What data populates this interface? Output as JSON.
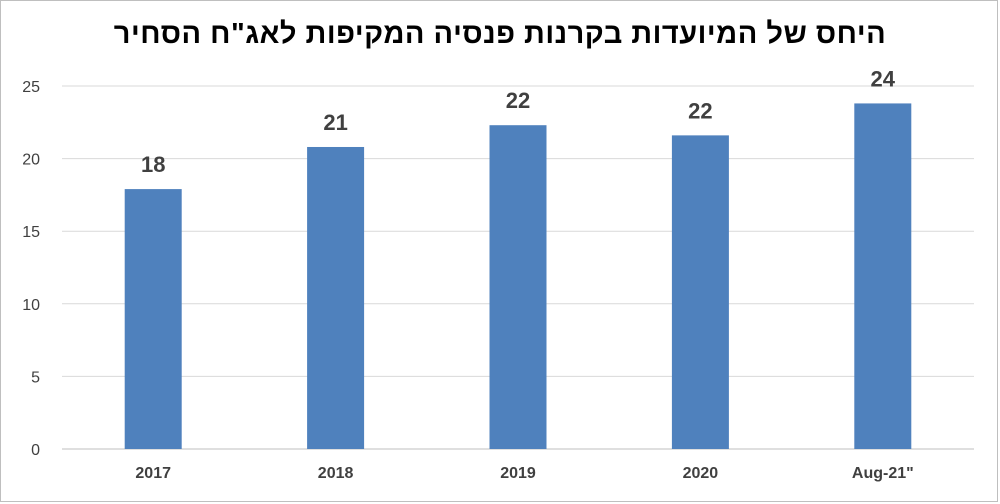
{
  "chart_data": {
    "type": "bar",
    "title": "היחס של המיועדות בקרנות פנסיה המקיפות לאג\"ח הסחיר",
    "xlabel": "",
    "ylabel": "",
    "categories": [
      "2017",
      "2018",
      "2019",
      "2020",
      "Aug-21\""
    ],
    "values": [
      17.9,
      20.8,
      22.3,
      21.6,
      23.8
    ],
    "data_labels": [
      "18",
      "21",
      "22",
      "22",
      "24"
    ],
    "ylim": [
      0,
      25
    ],
    "yticks": [
      0,
      5,
      10,
      15,
      20,
      25
    ],
    "grid": true,
    "legend": "none",
    "bar_color": "#4f81bd"
  }
}
